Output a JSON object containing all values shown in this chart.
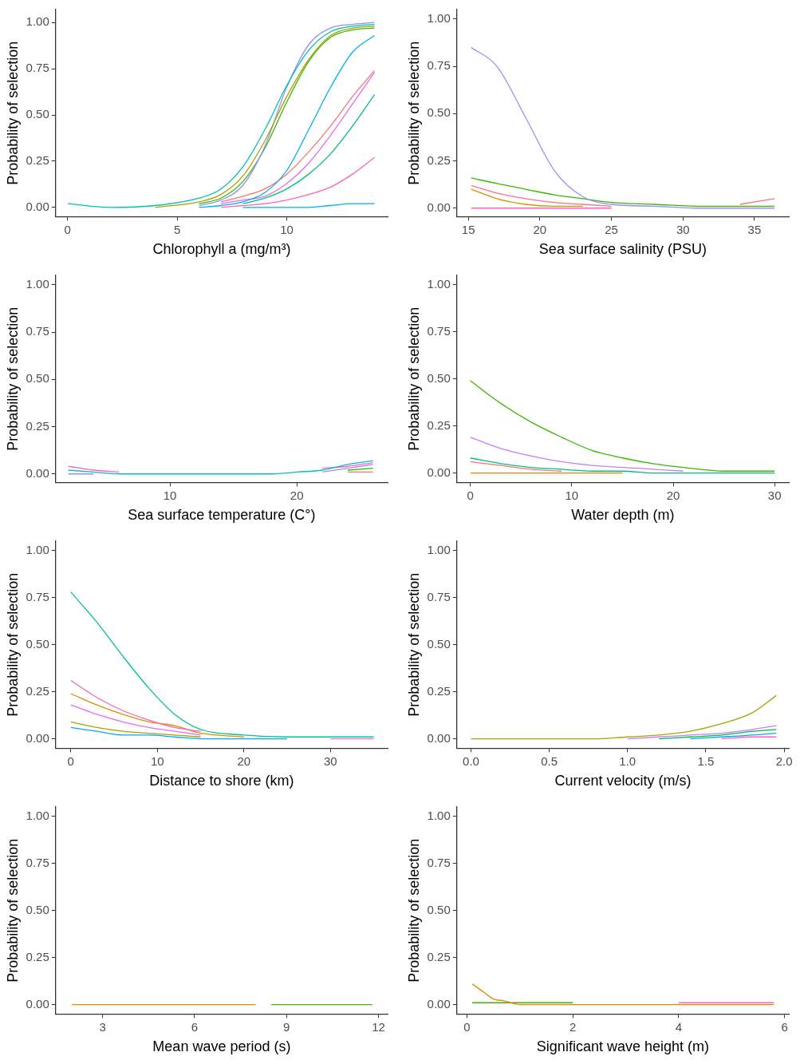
{
  "chart_data": [
    {
      "type": "line",
      "xlabel": "Chlorophyll a (mg/m³)",
      "ylabel": "Probability of selection",
      "xlim": [
        -0.54,
        14.6
      ],
      "ylim": [
        -0.05,
        1.07
      ],
      "xticks": [
        0,
        5,
        10
      ],
      "yticks": [
        {
          "value": 0,
          "label": "0.00"
        },
        {
          "value": 0.25,
          "label": "0.25"
        },
        {
          "value": 0.5,
          "label": "0.50"
        },
        {
          "value": 0.75,
          "label": "0.75"
        },
        {
          "value": 1,
          "label": "1.00"
        }
      ],
      "x": [
        0,
        2,
        4,
        6,
        7,
        8,
        9,
        10,
        11,
        12,
        13,
        14
      ],
      "series": [
        {
          "color": "#00c1aa",
          "values": [
            0.02,
            0,
            0.01,
            0.05,
            0.1,
            0.22,
            0.42,
            0.66,
            0.85,
            0.95,
            0.98,
            0.99
          ]
        },
        {
          "color": "#a3a500",
          "values": [
            null,
            null,
            0,
            0.03,
            0.07,
            0.17,
            0.36,
            0.6,
            0.8,
            0.93,
            0.97,
            0.98
          ]
        },
        {
          "color": "#9590ff",
          "values": [
            null,
            null,
            null,
            0.01,
            0.04,
            0.12,
            0.33,
            0.65,
            0.88,
            0.97,
            0.99,
            1
          ]
        },
        {
          "color": "#39b600",
          "values": [
            null,
            null,
            null,
            0.02,
            0.05,
            0.14,
            0.32,
            0.57,
            0.79,
            0.92,
            0.96,
            0.97
          ]
        },
        {
          "color": "#00b0f6",
          "values": [
            null,
            null,
            null,
            0,
            0.01,
            0.03,
            0.08,
            0.2,
            0.42,
            0.65,
            0.84,
            0.93
          ]
        },
        {
          "color": "#f8766d",
          "values": [
            null,
            null,
            null,
            null,
            0.03,
            0.06,
            0.1,
            0.18,
            0.3,
            0.44,
            0.6,
            0.74
          ]
        },
        {
          "color": "#e76bf3",
          "values": [
            null,
            null,
            null,
            null,
            0.02,
            0.04,
            0.06,
            0.13,
            0.24,
            0.39,
            0.56,
            0.73
          ]
        },
        {
          "color": "#00bf7d",
          "values": [
            null,
            null,
            null,
            null,
            null,
            0.02,
            0.05,
            0.1,
            0.18,
            0.29,
            0.44,
            0.61
          ]
        },
        {
          "color": "#ff62bc",
          "values": [
            null,
            null,
            null,
            null,
            0,
            0.01,
            0.02,
            0.04,
            0.07,
            0.11,
            0.18,
            0.27
          ]
        },
        {
          "color": "#00a9ff",
          "values": [
            null,
            null,
            null,
            null,
            null,
            0,
            0,
            0,
            0,
            0.01,
            0.02,
            0.02
          ]
        }
      ]
    },
    {
      "type": "line",
      "xlabel": "Sea surface salinity (PSU)",
      "ylabel": "Probability of selection",
      "xlim": [
        14.2,
        37.4
      ],
      "ylim": [
        -0.045,
        1.05
      ],
      "xticks": [
        15,
        20,
        25,
        30,
        35
      ],
      "yticks": [
        {
          "value": 0,
          "label": "0.00"
        },
        {
          "value": 0.25,
          "label": "0.25"
        },
        {
          "value": 0.5,
          "label": "0.50"
        },
        {
          "value": 0.75,
          "label": "0.75"
        },
        {
          "value": 1,
          "label": "1.00"
        }
      ],
      "x": [
        15.2,
        17,
        19,
        21,
        23,
        25,
        28,
        31,
        34,
        36.4
      ],
      "series": [
        {
          "color": "#9590ff",
          "values": [
            0.85,
            0.75,
            0.48,
            0.2,
            0.06,
            0.02,
            0.01,
            0,
            0,
            0
          ]
        },
        {
          "color": "#39b600",
          "values": [
            0.16,
            0.13,
            0.1,
            0.07,
            0.05,
            0.03,
            0.02,
            0.01,
            0.01,
            0.01
          ]
        },
        {
          "color": "#ff6c91",
          "values": [
            0.12,
            0.08,
            0.05,
            0.03,
            0.02,
            0.01,
            null,
            null,
            null,
            null
          ]
        },
        {
          "color": "#d89000",
          "values": [
            0.1,
            0.05,
            0.02,
            0.01,
            0.01,
            null,
            null,
            null,
            null,
            null
          ]
        },
        {
          "color": "#f8766d",
          "values": [
            null,
            null,
            null,
            null,
            null,
            null,
            null,
            null,
            0.02,
            0.05
          ]
        },
        {
          "color": "#ff62bc",
          "values": [
            0,
            0,
            0,
            0,
            0,
            0,
            null,
            null,
            null,
            null
          ]
        }
      ]
    },
    {
      "type": "line",
      "xlabel": "Sea surface temperature (C°)",
      "ylabel": "Probability of selection",
      "xlim": [
        1,
        27.15
      ],
      "ylim": [
        -0.045,
        1.05
      ],
      "xticks": [
        10,
        20
      ],
      "yticks": [
        {
          "value": 0,
          "label": "0.00"
        },
        {
          "value": 0.25,
          "label": "0.25"
        },
        {
          "value": 0.5,
          "label": "0.50"
        },
        {
          "value": 0.75,
          "label": "0.75"
        },
        {
          "value": 1,
          "label": "1.00"
        }
      ],
      "x": [
        2,
        4,
        6,
        10,
        14,
        18,
        20,
        22,
        24,
        26
      ],
      "series": [
        {
          "color": "#00bfc4",
          "values": [
            0.02,
            0.01,
            0,
            0,
            0,
            0,
            0.01,
            0.02,
            0.05,
            0.07
          ]
        },
        {
          "color": "#ff62bc",
          "values": [
            0.04,
            0.02,
            0.01,
            null,
            null,
            null,
            null,
            0.03,
            0.04,
            0.06
          ]
        },
        {
          "color": "#9590ff",
          "values": [
            0,
            0,
            null,
            null,
            null,
            null,
            null,
            0.01,
            0.03,
            0.05
          ]
        },
        {
          "color": "#39b600",
          "values": [
            null,
            null,
            null,
            null,
            null,
            null,
            null,
            null,
            0.02,
            0.03
          ]
        },
        {
          "color": "#f8766d",
          "values": [
            null,
            null,
            null,
            null,
            null,
            null,
            null,
            null,
            0.01,
            0.01
          ]
        }
      ]
    },
    {
      "type": "line",
      "xlabel": "Water depth (m)",
      "ylabel": "Probability of selection",
      "xlim": [
        -1.33,
        31.4
      ],
      "ylim": [
        -0.05,
        1.05
      ],
      "xticks": [
        0,
        10,
        20,
        30
      ],
      "yticks": [
        {
          "value": 0,
          "label": "0.00"
        },
        {
          "value": 0.25,
          "label": "0.25"
        },
        {
          "value": 0.5,
          "label": "0.50"
        },
        {
          "value": 0.75,
          "label": "0.75"
        },
        {
          "value": 1,
          "label": "1.00"
        }
      ],
      "x": [
        0,
        3,
        6,
        9,
        12,
        15,
        18,
        21,
        25,
        30
      ],
      "series": [
        {
          "color": "#39b600",
          "values": [
            0.49,
            0.37,
            0.27,
            0.19,
            0.12,
            0.08,
            0.05,
            0.03,
            0.01,
            0.01
          ]
        },
        {
          "color": "#c77cff",
          "values": [
            0.19,
            0.13,
            0.09,
            0.06,
            0.04,
            0.03,
            0.02,
            0.01,
            null,
            null
          ]
        },
        {
          "color": "#00bf7d",
          "values": [
            0.08,
            0.05,
            0.03,
            0.02,
            0.01,
            0.01,
            0,
            0,
            0,
            0
          ]
        },
        {
          "color": "#f8766d",
          "values": [
            0.06,
            0.04,
            0.02,
            0.01,
            null,
            null,
            null,
            null,
            null,
            null
          ]
        },
        {
          "color": "#e58700",
          "values": [
            0,
            0,
            0,
            0,
            0,
            0,
            null,
            null,
            null,
            null
          ]
        }
      ]
    },
    {
      "type": "line",
      "xlabel": "Distance to shore (km)",
      "ylabel": "Probability of selection",
      "xlim": [
        -1.75,
        36.6
      ],
      "ylim": [
        -0.05,
        1.05
      ],
      "xticks": [
        0,
        10,
        20,
        30
      ],
      "yticks": [
        {
          "value": 0,
          "label": "0.00"
        },
        {
          "value": 0.25,
          "label": "0.25"
        },
        {
          "value": 0.5,
          "label": "0.50"
        },
        {
          "value": 0.75,
          "label": "0.75"
        },
        {
          "value": 1,
          "label": "1.00"
        }
      ],
      "x": [
        0,
        3,
        6,
        9,
        12,
        15,
        20,
        25,
        30,
        35
      ],
      "series": [
        {
          "color": "#00c19a",
          "values": [
            0.78,
            0.62,
            0.44,
            0.27,
            0.13,
            0.05,
            0.02,
            0.01,
            0.01,
            0.01
          ]
        },
        {
          "color": "#ff62bc",
          "values": [
            0.31,
            0.22,
            0.15,
            0.1,
            0.06,
            0.04,
            null,
            null,
            null,
            null
          ]
        },
        {
          "color": "#d89000",
          "values": [
            0.24,
            0.18,
            0.13,
            0.09,
            0.07,
            0.03,
            0.01,
            null,
            null,
            null
          ]
        },
        {
          "color": "#e76bf3",
          "values": [
            0.18,
            0.13,
            0.09,
            0.06,
            0.04,
            0.02,
            null,
            null,
            0,
            0
          ]
        },
        {
          "color": "#a3a500",
          "values": [
            0.09,
            0.06,
            0.04,
            0.03,
            0.02,
            0.01,
            null,
            null,
            null,
            null
          ]
        },
        {
          "color": "#00a9ff",
          "values": [
            0.06,
            0.04,
            0.02,
            0.02,
            0.01,
            0,
            0,
            0,
            null,
            null
          ]
        }
      ]
    },
    {
      "type": "line",
      "xlabel": "Current velocity (m/s)",
      "ylabel": "Probability of selection",
      "xlim": [
        -0.09,
        2.03
      ],
      "ylim": [
        -0.05,
        1.05
      ],
      "xticks": [
        {
          "value": 0,
          "label": "0.0"
        },
        {
          "value": 0.5,
          "label": "0.5"
        },
        {
          "value": 1,
          "label": "1.0"
        },
        {
          "value": 1.5,
          "label": "1.5"
        },
        {
          "value": 2,
          "label": "2.0"
        }
      ],
      "yticks": [
        {
          "value": 0,
          "label": "0.00"
        },
        {
          "value": 0.25,
          "label": "0.25"
        },
        {
          "value": 0.5,
          "label": "0.50"
        },
        {
          "value": 0.75,
          "label": "0.75"
        },
        {
          "value": 1,
          "label": "1.00"
        }
      ],
      "x": [
        0,
        0.4,
        0.8,
        1,
        1.2,
        1.4,
        1.6,
        1.8,
        1.95
      ],
      "series": [
        {
          "color": "#a3a500",
          "values": [
            0,
            0,
            0,
            0.01,
            0.02,
            0.04,
            0.08,
            0.14,
            0.23
          ]
        },
        {
          "color": "#c77cff",
          "values": [
            null,
            null,
            null,
            0,
            0.01,
            0.02,
            0.03,
            0.05,
            0.07
          ]
        },
        {
          "color": "#00ba38",
          "values": [
            null,
            null,
            null,
            null,
            0,
            0.01,
            0.02,
            0.04,
            0.05
          ]
        },
        {
          "color": "#00a9ff",
          "values": [
            null,
            null,
            null,
            null,
            null,
            0,
            0.01,
            0.02,
            0.03
          ]
        },
        {
          "color": "#ff62bc",
          "values": [
            null,
            null,
            null,
            null,
            null,
            null,
            0,
            0.01,
            0.01
          ]
        }
      ]
    },
    {
      "type": "line",
      "xlabel": "Mean wave period (s)",
      "ylabel": "Probability of selection",
      "xlim": [
        1.47,
        12.3
      ],
      "ylim": [
        -0.05,
        1.05
      ],
      "xticks": [
        3,
        6,
        9,
        12
      ],
      "yticks": [
        {
          "value": 0,
          "label": "0.00"
        },
        {
          "value": 0.25,
          "label": "0.25"
        },
        {
          "value": 0.5,
          "label": "0.50"
        },
        {
          "value": 0.75,
          "label": "0.75"
        },
        {
          "value": 1,
          "label": "1.00"
        }
      ],
      "series": [
        {
          "color": "#e58700",
          "x": [
            2,
            5,
            8
          ],
          "values": [
            0,
            0,
            0
          ]
        },
        {
          "color": "#39b600",
          "x": [
            8.5,
            11.8
          ],
          "values": [
            0,
            0
          ]
        }
      ]
    },
    {
      "type": "line",
      "xlabel": "Significant wave height (m)",
      "ylabel": "Probability of selection",
      "xlim": [
        -0.19,
        6.08
      ],
      "ylim": [
        -0.05,
        1.05
      ],
      "xticks": [
        0,
        2,
        4,
        6
      ],
      "yticks": [
        {
          "value": 0,
          "label": "0.00"
        },
        {
          "value": 0.25,
          "label": "0.25"
        },
        {
          "value": 0.5,
          "label": "0.50"
        },
        {
          "value": 0.75,
          "label": "0.75"
        },
        {
          "value": 1,
          "label": "1.00"
        }
      ],
      "x": [
        0.1,
        0.3,
        0.5,
        0.7,
        1,
        2,
        3,
        4,
        5,
        5.8
      ],
      "series": [
        {
          "color": "#e58700",
          "values": [
            0.11,
            0.07,
            0.03,
            0.02,
            0,
            0,
            0,
            0,
            0,
            0
          ]
        },
        {
          "color": "#39b600",
          "values": [
            0.01,
            0.01,
            0.01,
            0.01,
            0.01,
            0.01,
            null,
            null,
            null,
            null
          ]
        },
        {
          "color": "#ff62bc",
          "values": [
            null,
            null,
            null,
            null,
            null,
            null,
            null,
            0.01,
            0.01,
            0.01
          ]
        }
      ]
    }
  ]
}
